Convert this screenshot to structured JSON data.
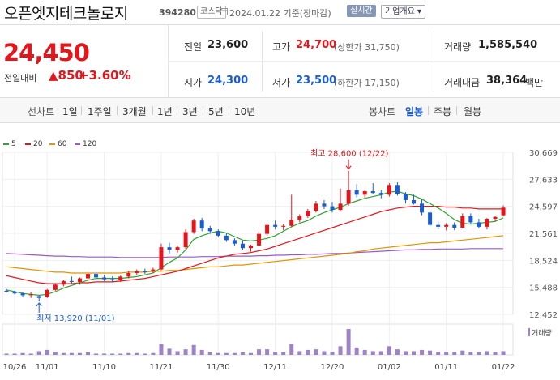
{
  "header": {
    "stock_name": "오픈엣지테크놀로지",
    "stock_code": "394280",
    "market": "코스닥",
    "date_text": "2024.01.22 기준(장마감)",
    "realtime_label": "실시간",
    "company_overview_label": "기업개요 ▾",
    "calendar_icon": "calendar-icon"
  },
  "quote": {
    "price": "24,450",
    "change_label": "전일대비",
    "change": "▲850",
    "change_pct": "+3.60%",
    "prev_close_label": "전일",
    "prev_close": "23,600",
    "high_label": "고가",
    "high": "24,700",
    "upper_limit": "(상한가 31,750)",
    "volume_label": "거래량",
    "volume": "1,585,540",
    "open_label": "시가",
    "open": "24,300",
    "low_label": "저가",
    "low": "23,500",
    "lower_limit": "(하한가 17,150)",
    "amount_label": "거래대금",
    "amount": "38,364",
    "amount_unit": "백만"
  },
  "period_tabs": {
    "line_chart_label": "선차트",
    "items": [
      "1일",
      "1주일",
      "3개월",
      "1년",
      "3년",
      "5년",
      "10년"
    ],
    "candle_chart_label": "봉차트",
    "candle_items": [
      "일봉",
      "주봉",
      "월봉"
    ],
    "active_candle": "일봉"
  },
  "colors": {
    "up": "#e4161c",
    "down": "#1a5bd6",
    "ma5": "#32a332",
    "ma20": "#e4161c",
    "ma60": "#e39400",
    "ma120": "#9b59c6",
    "volume": "#9d82c4"
  },
  "chart_data": {
    "type": "candlestick",
    "legend": [
      {
        "name": "5",
        "color": "#32a332"
      },
      {
        "name": "20",
        "color": "#e4161c"
      },
      {
        "name": "60",
        "color": "#e39400"
      },
      {
        "name": "120",
        "color": "#9b59c6"
      }
    ],
    "y_ticks": [
      "30,669",
      "27,633",
      "24,597",
      "21,561",
      "18,524",
      "15,488",
      "12,452"
    ],
    "y_tick_values": [
      30669,
      27633,
      24597,
      21561,
      18524,
      15488,
      12452
    ],
    "ylim": [
      12452,
      30669
    ],
    "x_ticks": [
      "10/26",
      "11/01",
      "11/10",
      "11/21",
      "11/30",
      "12/11",
      "12/20",
      "01/02",
      "01/11",
      "01/22"
    ],
    "x_tick_index": [
      0,
      4,
      11,
      18,
      25,
      32,
      39,
      46,
      53,
      60
    ],
    "high_annotation": "최고 28,600 (12/22)",
    "low_annotation": "최저 13,920 (11/01)",
    "volume_label": "거래량",
    "candles": [
      [
        15100,
        15300,
        14900,
        15000
      ],
      [
        15000,
        15100,
        14700,
        14800
      ],
      [
        14800,
        15000,
        14400,
        14600
      ],
      [
        14600,
        14900,
        14300,
        14700
      ],
      [
        14500,
        14600,
        13920,
        14300
      ],
      [
        14400,
        15300,
        14300,
        15200
      ],
      [
        15200,
        15900,
        15100,
        15800
      ],
      [
        15800,
        16300,
        15600,
        16200
      ],
      [
        16200,
        16700,
        15900,
        16100
      ],
      [
        16100,
        16600,
        15800,
        16500
      ],
      [
        16500,
        17200,
        16300,
        17000
      ],
      [
        17000,
        17200,
        16400,
        16600
      ],
      [
        16600,
        16900,
        16200,
        16400
      ],
      [
        16400,
        16700,
        16100,
        16300
      ],
      [
        16300,
        16800,
        16100,
        16700
      ],
      [
        16700,
        17300,
        16500,
        17100
      ],
      [
        17100,
        17500,
        16900,
        17300
      ],
      [
        17300,
        17600,
        17000,
        17200
      ],
      [
        17300,
        17700,
        17100,
        17500
      ],
      [
        17500,
        20400,
        17400,
        20000
      ],
      [
        20000,
        20500,
        19300,
        19700
      ],
      [
        19700,
        20200,
        19400,
        20000
      ],
      [
        20000,
        22000,
        19800,
        21700
      ],
      [
        21700,
        23200,
        21500,
        23000
      ],
      [
        23000,
        23300,
        21800,
        22100
      ],
      [
        22100,
        22400,
        21500,
        21800
      ],
      [
        21800,
        22000,
        21100,
        21300
      ],
      [
        21300,
        21600,
        20600,
        20800
      ],
      [
        20800,
        21000,
        20200,
        20400
      ],
      [
        20400,
        20700,
        19700,
        19900
      ],
      [
        19900,
        20300,
        19500,
        20200
      ],
      [
        20200,
        21800,
        20100,
        21500
      ],
      [
        21500,
        22700,
        21300,
        22500
      ],
      [
        22500,
        23000,
        22000,
        22300
      ],
      [
        22300,
        22600,
        21900,
        22400
      ],
      [
        22400,
        25900,
        22300,
        23100
      ],
      [
        23100,
        23700,
        22800,
        23500
      ],
      [
        23500,
        24300,
        23300,
        24100
      ],
      [
        24100,
        25200,
        23900,
        24900
      ],
      [
        24900,
        25300,
        24300,
        24600
      ],
      [
        24600,
        25100,
        23900,
        24200
      ],
      [
        24200,
        26600,
        24000,
        24900
      ],
      [
        24900,
        28600,
        24700,
        26400
      ],
      [
        26400,
        27100,
        25600,
        25900
      ],
      [
        25900,
        26500,
        25600,
        26300
      ],
      [
        26300,
        27200,
        26000,
        26100
      ],
      [
        26100,
        26400,
        25500,
        25900
      ],
      [
        25900,
        27200,
        25700,
        27000
      ],
      [
        27000,
        27300,
        25800,
        26000
      ],
      [
        26000,
        26200,
        24900,
        25300
      ],
      [
        25300,
        25900,
        24800,
        24900
      ],
      [
        24900,
        25400,
        23600,
        23900
      ],
      [
        23900,
        24100,
        22300,
        22500
      ],
      [
        22500,
        22900,
        22000,
        22300
      ],
      [
        22300,
        22700,
        21900,
        22500
      ],
      [
        22500,
        22800,
        21900,
        22200
      ],
      [
        22200,
        23800,
        22100,
        23500
      ],
      [
        23500,
        23800,
        22600,
        22800
      ],
      [
        22800,
        23200,
        22100,
        22300
      ],
      [
        22300,
        23300,
        22000,
        23200
      ],
      [
        23200,
        23500,
        22900,
        23400
      ],
      [
        23600,
        24700,
        23500,
        24450
      ]
    ],
    "volume": [
      2,
      2,
      3,
      2,
      6,
      8,
      5,
      3,
      3,
      3,
      4,
      2,
      2,
      2,
      2,
      3,
      3,
      2,
      3,
      18,
      10,
      6,
      9,
      16,
      8,
      4,
      3,
      3,
      3,
      4,
      3,
      9,
      9,
      5,
      4,
      18,
      6,
      8,
      9,
      6,
      5,
      14,
      42,
      12,
      8,
      6,
      6,
      14,
      9,
      6,
      6,
      8,
      7,
      5,
      5,
      5,
      7,
      5,
      4,
      6,
      5,
      6
    ],
    "ma5": [
      15200,
      15000,
      14800,
      14700,
      14600,
      14700,
      15000,
      15400,
      15700,
      16000,
      16300,
      16500,
      16500,
      16500,
      16500,
      16600,
      16700,
      16900,
      17100,
      17700,
      18300,
      18800,
      19700,
      20900,
      21300,
      21600,
      21800,
      21600,
      21200,
      20800,
      20700,
      20800,
      21000,
      21300,
      21800,
      22300,
      22700,
      23000,
      23500,
      23900,
      24200,
      24500,
      24900,
      25200,
      25500,
      25700,
      25900,
      26200,
      26300,
      26000,
      25800,
      25400,
      24900,
      24400,
      23800,
      23100,
      22700,
      22600,
      22700,
      22800,
      22900,
      23300
    ],
    "ma20": [
      16800,
      16600,
      16400,
      16200,
      16000,
      15900,
      15900,
      15900,
      15900,
      16000,
      16000,
      16100,
      16100,
      16100,
      16200,
      16300,
      16400,
      16500,
      16700,
      16900,
      17100,
      17300,
      17600,
      17900,
      18200,
      18500,
      18800,
      19000,
      19200,
      19300,
      19400,
      19600,
      19800,
      20100,
      20400,
      20700,
      21000,
      21300,
      21600,
      21900,
      22200,
      22500,
      22800,
      23100,
      23400,
      23700,
      24000,
      24200,
      24400,
      24500,
      24600,
      24600,
      24600,
      24600,
      24500,
      24500,
      24400,
      24400,
      24300,
      24300,
      24300,
      24300
    ],
    "ma60": [
      17800,
      17700,
      17600,
      17500,
      17400,
      17300,
      17200,
      17200,
      17100,
      17100,
      17100,
      17100,
      17100,
      17100,
      17100,
      17200,
      17200,
      17200,
      17300,
      17300,
      17400,
      17400,
      17500,
      17600,
      17700,
      17800,
      17800,
      17900,
      18000,
      18000,
      18100,
      18200,
      18300,
      18400,
      18500,
      18600,
      18700,
      18800,
      18900,
      19000,
      19100,
      19200,
      19300,
      19500,
      19600,
      19800,
      19900,
      20000,
      20100,
      20200,
      20300,
      20400,
      20500,
      20500,
      20600,
      20700,
      20800,
      20900,
      21000,
      21100,
      21200,
      21300
    ],
    "ma120": [
      19300,
      19250,
      19200,
      19150,
      19100,
      19050,
      19000,
      19000,
      18950,
      18950,
      18900,
      18900,
      18900,
      18900,
      18850,
      18850,
      18850,
      18850,
      18850,
      18850,
      18900,
      18900,
      18900,
      18900,
      18950,
      18950,
      18950,
      19000,
      19000,
      19000,
      19000,
      19050,
      19050,
      19100,
      19100,
      19150,
      19150,
      19200,
      19200,
      19250,
      19300,
      19300,
      19350,
      19400,
      19450,
      19500,
      19550,
      19600,
      19650,
      19700,
      19700,
      19750,
      19750,
      19800,
      19800,
      19800,
      19800,
      19850,
      19850,
      19850,
      19850,
      19850
    ]
  }
}
